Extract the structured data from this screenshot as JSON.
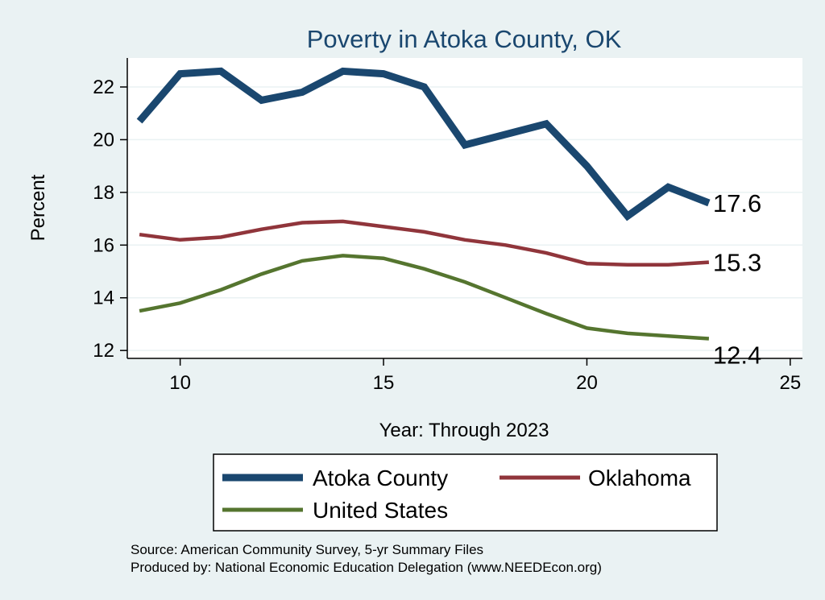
{
  "chart_data": {
    "type": "line",
    "title": "Poverty in Atoka County, OK",
    "xlabel": "Year: Through 2023",
    "ylabel": "Percent",
    "xlim": [
      8.7,
      25.3
    ],
    "ylim": [
      11.7,
      23.1
    ],
    "xticks": [
      10,
      15,
      20,
      25
    ],
    "yticks": [
      12,
      14,
      16,
      18,
      20,
      22
    ],
    "grid": true,
    "x": [
      9,
      10,
      11,
      12,
      13,
      14,
      15,
      16,
      17,
      18,
      19,
      20,
      21,
      22,
      23
    ],
    "series": [
      {
        "name": "Atoka County",
        "color": "#1a476f",
        "values": [
          20.7,
          22.5,
          22.6,
          21.5,
          21.8,
          22.6,
          22.5,
          22.0,
          19.8,
          20.2,
          20.6,
          19.0,
          17.1,
          18.2,
          17.6
        ],
        "end_label": "17.6"
      },
      {
        "name": "Oklahoma",
        "color": "#90353b",
        "values": [
          16.4,
          16.2,
          16.3,
          16.6,
          16.85,
          16.9,
          16.7,
          16.5,
          16.2,
          16.0,
          15.7,
          15.3,
          15.25,
          15.25,
          15.35
        ],
        "end_label": "15.3"
      },
      {
        "name": "United States",
        "color": "#55752f",
        "values": [
          13.5,
          13.8,
          14.3,
          14.9,
          15.4,
          15.6,
          15.5,
          15.1,
          14.6,
          14.0,
          13.4,
          12.85,
          12.65,
          12.55,
          12.45
        ],
        "end_label": "12.4"
      }
    ],
    "legend_position": "bottom"
  },
  "notes": {
    "source": "Source: American Community Survey, 5-yr Summary Files",
    "produced_by": "Produced by: National Economic Education Delegation (www.NEEDEcon.org)"
  }
}
